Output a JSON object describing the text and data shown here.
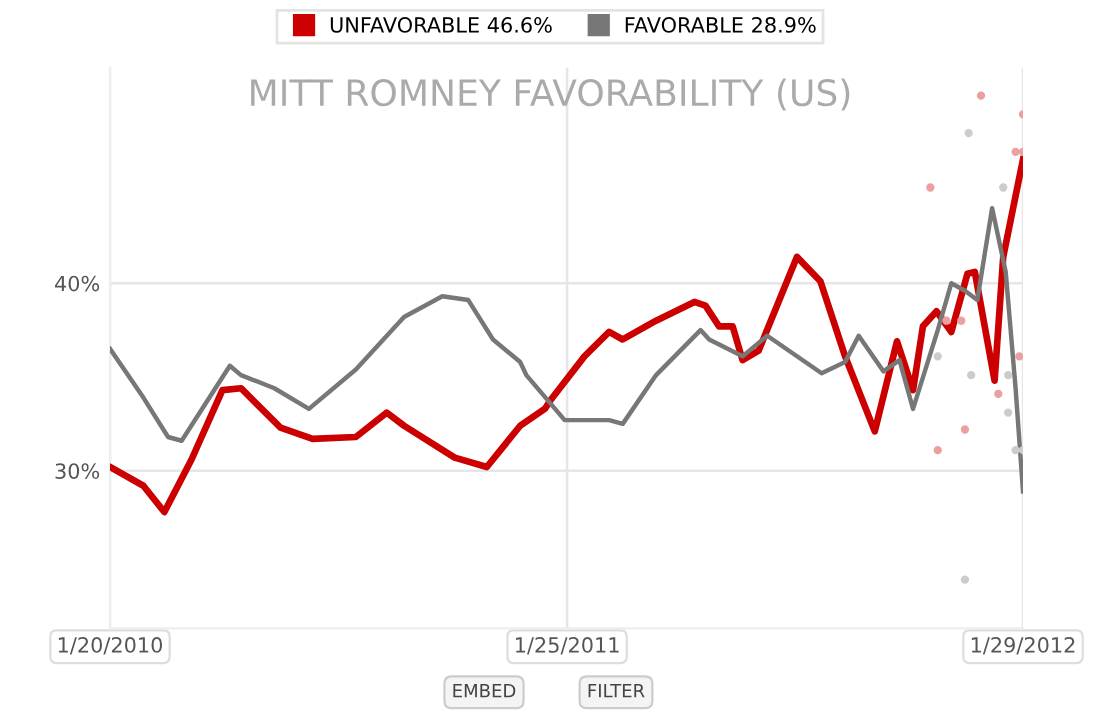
{
  "chart_data": {
    "type": "line",
    "title": "MITT ROMNEY FAVORABILITY (US)",
    "xlim": [
      "2010-01-20",
      "2012-01-29"
    ],
    "xticks": [
      {
        "value": "2010-01-20",
        "label": "1/20/2010"
      },
      {
        "value": "2011-01-25",
        "label": "1/25/2011"
      },
      {
        "value": "2012-01-29",
        "label": "1/29/2012"
      }
    ],
    "ylim": [
      21.6,
      51.5
    ],
    "yticks": [
      {
        "value": 30,
        "label": "30%"
      },
      {
        "value": 40,
        "label": "40%"
      }
    ],
    "grid": true,
    "legend": "top",
    "line_style": "solid",
    "annotations": [
      "EMBED",
      "FILTER"
    ],
    "series": [
      {
        "type": "scatter",
        "marker": "circle",
        "color": "#eba0a0",
        "x": [
          "2011-12-26",
          "2012-01-29",
          "2012-01-23",
          "2012-01-29",
          "2011-11-15",
          "2011-11-28",
          "2011-12-10",
          "2012-01-26",
          "2012-01-09",
          "2011-12-13",
          "2011-11-21"
        ],
        "values": [
          50.0,
          49.0,
          47.0,
          47.0,
          45.1,
          38.0,
          38.0,
          36.1,
          34.1,
          32.2,
          31.1
        ]
      },
      {
        "type": "scatter",
        "marker": "circle",
        "color": "#cccccc",
        "x": [
          "2011-12-16",
          "2012-01-13",
          "2011-12-18",
          "2012-01-17",
          "2012-01-17",
          "2012-01-23",
          "2012-01-29",
          "2011-12-13",
          "2011-11-21"
        ],
        "values": [
          48.0,
          45.1,
          35.1,
          35.1,
          33.1,
          31.1,
          31.1,
          24.2,
          36.1
        ]
      },
      {
        "name": "UNFAVORABLE 46.6%",
        "color": "#cc0000",
        "x": [
          "2010-01-20",
          "2010-02-16",
          "2010-03-05",
          "2010-03-27",
          "2010-04-21",
          "2010-05-06",
          "2010-06-07",
          "2010-07-03",
          "2010-08-07",
          "2010-09-01",
          "2010-09-15",
          "2010-10-26",
          "2010-11-21",
          "2010-12-18",
          "2011-01-07",
          "2011-01-12",
          "2011-02-08",
          "2011-02-28",
          "2011-03-11",
          "2011-04-07",
          "2011-05-08",
          "2011-05-17",
          "2011-05-28",
          "2011-06-08",
          "2011-06-16",
          "2011-06-29",
          "2011-07-30",
          "2011-08-18",
          "2011-09-07",
          "2011-10-01",
          "2011-10-19",
          "2011-11-01",
          "2011-11-09",
          "2011-11-20",
          "2011-12-02",
          "2011-12-15",
          "2011-12-21",
          "2012-01-06",
          "2012-01-13",
          "2012-01-29"
        ],
        "values": [
          30.2,
          29.2,
          27.8,
          30.6,
          34.3,
          34.4,
          32.3,
          31.7,
          31.8,
          33.1,
          32.4,
          30.7,
          30.2,
          32.4,
          33.3,
          33.8,
          36.1,
          37.4,
          37.0,
          38.0,
          39.0,
          38.8,
          37.7,
          37.7,
          35.9,
          36.4,
          41.4,
          40.1,
          36.1,
          32.1,
          36.9,
          34.3,
          37.7,
          38.5,
          37.4,
          40.5,
          40.6,
          34.8,
          41.4,
          46.6
        ]
      },
      {
        "name": "FAVORABLE 28.9%",
        "color": "#777777",
        "x": [
          "2010-01-20",
          "2010-02-16",
          "2010-03-08",
          "2010-03-19",
          "2010-04-27",
          "2010-05-06",
          "2010-06-02",
          "2010-06-30",
          "2010-08-07",
          "2010-09-15",
          "2010-10-16",
          "2010-11-06",
          "2010-11-26",
          "2010-12-18",
          "2010-12-23",
          "2011-01-23",
          "2011-02-28",
          "2011-03-11",
          "2011-04-07",
          "2011-05-13",
          "2011-05-20",
          "2011-06-16",
          "2011-07-06",
          "2011-08-19",
          "2011-09-07",
          "2011-09-18",
          "2011-10-08",
          "2011-10-21",
          "2011-11-01",
          "2011-11-21",
          "2011-12-02",
          "2011-12-13",
          "2011-12-23",
          "2012-01-04",
          "2012-01-15",
          "2012-01-23",
          "2012-01-29"
        ],
        "values": [
          36.5,
          33.9,
          31.8,
          31.6,
          35.6,
          35.1,
          34.4,
          33.3,
          35.4,
          38.2,
          39.3,
          39.1,
          37.0,
          35.8,
          35.1,
          32.7,
          32.7,
          32.5,
          35.1,
          37.5,
          37.0,
          36.1,
          37.2,
          35.2,
          35.8,
          37.2,
          35.3,
          35.9,
          33.3,
          37.5,
          40.0,
          39.6,
          39.1,
          44.0,
          40.6,
          34.4,
          28.9
        ]
      }
    ]
  }
}
